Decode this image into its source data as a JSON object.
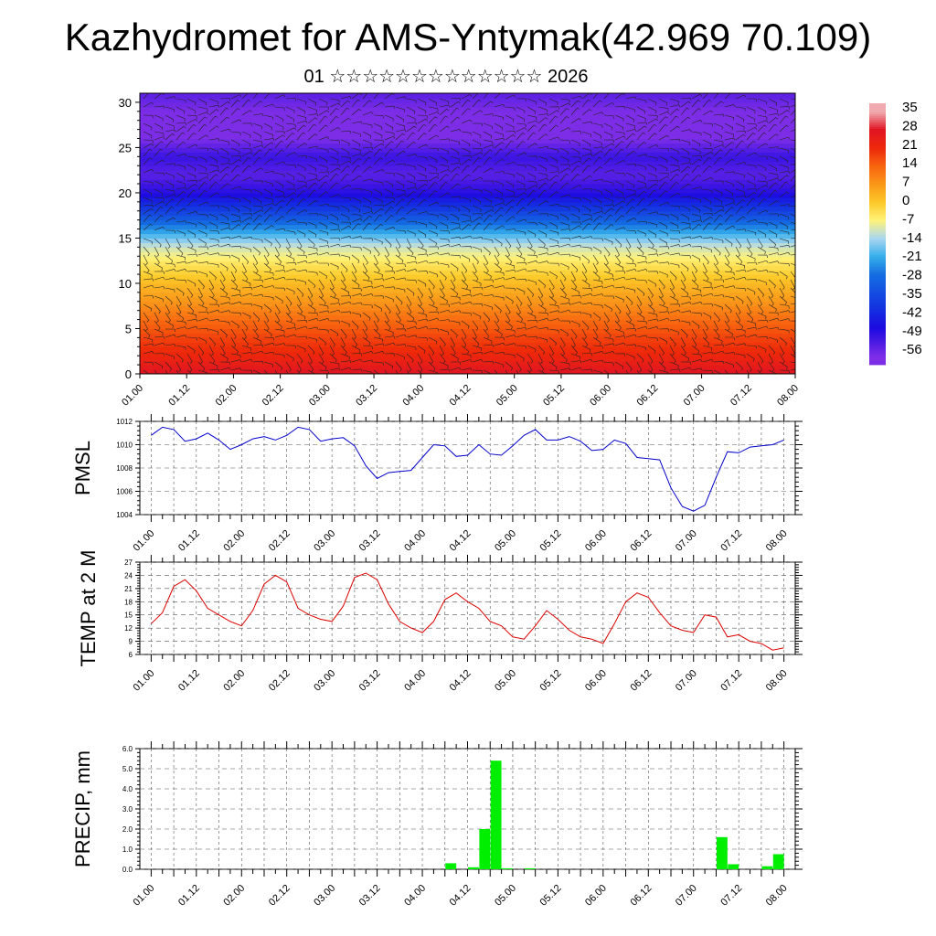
{
  "title": "Kazhydromet for AMS-Yntymak(42.969 70.109)",
  "subtitle": "01 ☆☆☆☆☆☆☆☆☆☆☆☆☆ 2026",
  "chart_data": [
    {
      "type": "heatmap",
      "xlabel": "",
      "ylabel": "",
      "x_tick_labels": [
        "01.00",
        "01.12",
        "02.00",
        "02.12",
        "03.00",
        "03.12",
        "04.00",
        "04.12",
        "05.00",
        "05.12",
        "06.00",
        "06.12",
        "07.00",
        "07.12",
        "08.00"
      ],
      "y_ticks": [
        0,
        5,
        10,
        15,
        20,
        25,
        30
      ],
      "ylim": [
        0,
        31
      ],
      "colorbar_labels": [
        "35",
        "28",
        "21",
        "14",
        "7",
        "0",
        "-7",
        "-14",
        "-21",
        "-28",
        "-35",
        "-42",
        "-49",
        "-56"
      ],
      "levels": [
        0,
        2,
        4,
        6,
        8,
        10,
        12,
        14,
        16,
        18,
        20,
        22,
        24,
        26,
        28,
        31
      ],
      "values_by_level": [
        28,
        22,
        18,
        13,
        7,
        2,
        -4,
        -11,
        -24,
        -38,
        -50,
        -56,
        -52,
        -60,
        -62,
        -56
      ],
      "overlay": "wind barbs"
    },
    {
      "type": "line",
      "ylabel": "PMSL",
      "ylim": [
        1004,
        1012
      ],
      "y_ticks": [
        "1004",
        "1006",
        "1008",
        "1010",
        "1012"
      ],
      "x_tick_labels": [
        "01.00",
        "01.12",
        "02.00",
        "02.12",
        "03.00",
        "03.12",
        "04.00",
        "04.12",
        "05.00",
        "05.12",
        "06.00",
        "06.12",
        "07.00",
        "07.12",
        "08.00"
      ],
      "series": [
        {
          "color": "#0000cc",
          "x": [
            0,
            3,
            6,
            9,
            12,
            15,
            18,
            21,
            24,
            27,
            30,
            33,
            36,
            39,
            42,
            45,
            48,
            51,
            54,
            57,
            60,
            63,
            66,
            69,
            72,
            75,
            78,
            81,
            84,
            87,
            90,
            93,
            96,
            99,
            102,
            105,
            108,
            111,
            114,
            117,
            120,
            123,
            126,
            129,
            132,
            135,
            138,
            141,
            144,
            147,
            150,
            153,
            156,
            159,
            162,
            165,
            168
          ],
          "values": [
            1010.8,
            1011.5,
            1011.3,
            1010.3,
            1010.5,
            1011.0,
            1010.4,
            1009.6,
            1010.0,
            1010.5,
            1010.7,
            1010.4,
            1010.8,
            1011.5,
            1011.3,
            1010.3,
            1010.5,
            1010.6,
            1009.9,
            1008.2,
            1007.1,
            1007.6,
            1007.7,
            1007.8,
            1008.9,
            1010.0,
            1009.9,
            1009.0,
            1009.1,
            1010.0,
            1009.2,
            1009.1,
            1009.9,
            1010.8,
            1011.3,
            1010.4,
            1010.4,
            1010.7,
            1010.3,
            1009.5,
            1009.6,
            1010.4,
            1010.1,
            1008.9,
            1008.8,
            1008.7,
            1006.3,
            1004.7,
            1004.3,
            1004.8,
            1007.2,
            1009.4,
            1009.3,
            1009.8,
            1009.9,
            1010.0,
            1010.4
          ]
        }
      ]
    },
    {
      "type": "line",
      "ylabel": "TEMP at 2 M",
      "ylim": [
        6,
        27
      ],
      "y_ticks": [
        "6",
        "9",
        "12",
        "15",
        "18",
        "21",
        "24",
        "27"
      ],
      "x_tick_labels": [
        "01.00",
        "01.12",
        "02.00",
        "02.12",
        "03.00",
        "03.12",
        "04.00",
        "04.12",
        "05.00",
        "05.12",
        "06.00",
        "06.12",
        "07.00",
        "07.12",
        "08.00"
      ],
      "series": [
        {
          "color": "#dd0000",
          "x": [
            0,
            3,
            6,
            9,
            12,
            15,
            18,
            21,
            24,
            27,
            30,
            33,
            36,
            39,
            42,
            45,
            48,
            51,
            54,
            57,
            60,
            63,
            66,
            69,
            72,
            75,
            78,
            81,
            84,
            87,
            90,
            93,
            96,
            99,
            102,
            105,
            108,
            111,
            114,
            117,
            120,
            123,
            126,
            129,
            132,
            135,
            138,
            141,
            144,
            147,
            150,
            153,
            156,
            159,
            162,
            165,
            168
          ],
          "values": [
            13,
            15.5,
            21.5,
            23,
            20.5,
            16.5,
            15,
            13.5,
            12.5,
            16,
            22,
            24,
            22.5,
            16.5,
            15,
            14,
            13.5,
            17,
            23.5,
            24.5,
            23,
            17.5,
            13.5,
            12,
            11,
            13.5,
            18.5,
            20,
            18,
            16.5,
            13.5,
            12.5,
            10,
            9.5,
            12.5,
            16,
            14,
            11.5,
            10,
            9.5,
            8.5,
            13,
            18,
            20,
            19,
            15.5,
            12.5,
            11.5,
            11,
            15,
            14.5,
            10,
            10.5,
            9,
            8.5,
            7,
            7.5
          ]
        }
      ]
    },
    {
      "type": "bar",
      "ylabel": "PRECIP, mm",
      "ylim": [
        0,
        6
      ],
      "y_ticks": [
        "0.0",
        "1.0",
        "2.0",
        "3.0",
        "4.0",
        "5.0",
        "6.0"
      ],
      "x_tick_labels": [
        "01.00",
        "01.12",
        "02.00",
        "02.12",
        "03.00",
        "03.12",
        "04.00",
        "04.12",
        "05.00",
        "05.12",
        "06.00",
        "06.12",
        "07.00",
        "07.12",
        "08.00"
      ],
      "bar_color": "#00ee00",
      "x": [
        81,
        84,
        87,
        90,
        93,
        96,
        99,
        102,
        105,
        108,
        111,
        114,
        117,
        120,
        123,
        126,
        129,
        132,
        135,
        138,
        141,
        144,
        147,
        150,
        153,
        156,
        159,
        162,
        165,
        168
      ],
      "values": [
        0.3,
        0,
        0.1,
        2.0,
        5.4,
        0.05,
        0,
        0.05,
        0,
        0,
        0,
        0,
        0,
        0,
        0,
        0,
        0,
        0,
        0,
        0,
        0,
        0,
        0,
        0,
        1.6,
        0.25,
        0,
        0,
        0.15,
        0.75
      ]
    }
  ]
}
